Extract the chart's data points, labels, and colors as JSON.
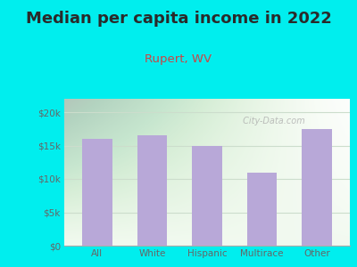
{
  "title": "Median per capita income in 2022",
  "subtitle": "Rupert, WV",
  "categories": [
    "All",
    "White",
    "Hispanic",
    "Multirace",
    "Other"
  ],
  "values": [
    16000,
    16500,
    15000,
    11000,
    17500
  ],
  "bar_color": "#b8a8d8",
  "background_outer": "#00eeee",
  "background_inner": "#f0f8f0",
  "title_color": "#2a2a2a",
  "subtitle_color": "#cc4444",
  "tick_label_color": "#666666",
  "grid_color": "#ccddcc",
  "ylim": [
    0,
    22000
  ],
  "yticks": [
    0,
    5000,
    10000,
    15000,
    20000
  ],
  "ytick_labels": [
    "$0",
    "$5k",
    "$10k",
    "$15k",
    "$20k"
  ],
  "title_fontsize": 13,
  "subtitle_fontsize": 9.5,
  "watermark": " City-Data.com"
}
